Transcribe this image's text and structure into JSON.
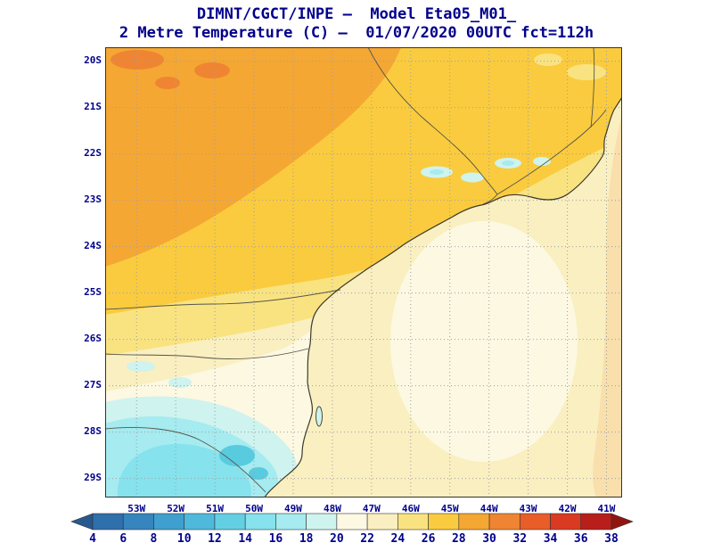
{
  "header": {
    "title_line1": "DIMNT/CGCT/INPE —  Model Eta05_M01_",
    "title_line2": "2 Metre Temperature (C) —  01/07/2020 00UTC fct=112h"
  },
  "map": {
    "lat_labels": [
      "20S",
      "21S",
      "22S",
      "23S",
      "24S",
      "25S",
      "26S",
      "27S",
      "28S",
      "29S"
    ],
    "lon_labels": [
      "53W",
      "52W",
      "51W",
      "50W",
      "49W",
      "48W",
      "47W",
      "46W",
      "45W",
      "44W",
      "43W",
      "42W",
      "41W"
    ],
    "palette": {
      "t12_14": "#58CBDF",
      "t14_16": "#86E2EC",
      "t16_18": "#A5EBF0",
      "t18_20": "#CFF3EE",
      "t20_22": "#FCF8E2",
      "t22_24": "#FAEFC0",
      "t24_26": "#F9E381",
      "t26_28": "#FACB3E",
      "t28_30": "#F5A733",
      "t30_32": "#EF8532",
      "ocean_right": "#F8DFAC",
      "coast_line": "#3A3A2E",
      "border_line": "#55554A",
      "grid_line": "#9AA0A6",
      "label_color": "#00008B"
    }
  },
  "colorbar": {
    "values": [
      "4",
      "6",
      "8",
      "10",
      "12",
      "14",
      "16",
      "18",
      "20",
      "22",
      "24",
      "26",
      "28",
      "30",
      "32",
      "34",
      "36",
      "38"
    ],
    "colors": [
      "#27598F",
      "#2F6FAC",
      "#3685BE",
      "#3F9FCE",
      "#4FB9DC",
      "#63CFE3",
      "#86E2EC",
      "#A5EBF0",
      "#CFF3EE",
      "#FCF8E2",
      "#FAEFC0",
      "#F9E381",
      "#FACB3E",
      "#F5A733",
      "#EF8532",
      "#E85D28",
      "#D93A21",
      "#B81E1A",
      "#8F1511"
    ]
  },
  "chart_data": {
    "type": "heatmap",
    "title": "2 Metre Temperature (C)",
    "institution": "DIMNT/CGCT/INPE",
    "model": "Eta05_M01_",
    "valid_time": "01/07/2020 00UTC",
    "forecast": "fct=112h",
    "x_tick_labels": [
      "53W",
      "52W",
      "51W",
      "50W",
      "49W",
      "48W",
      "47W",
      "46W",
      "45W",
      "44W",
      "43W",
      "42W",
      "41W"
    ],
    "y_tick_labels": [
      "20S",
      "21S",
      "22S",
      "23S",
      "24S",
      "25S",
      "26S",
      "27S",
      "28S",
      "29S"
    ],
    "colorbar_levels_c": [
      4,
      6,
      8,
      10,
      12,
      14,
      16,
      18,
      20,
      22,
      24,
      26,
      28,
      30,
      32,
      34,
      36,
      38
    ],
    "legend_position": "bottom",
    "grid": "dotted",
    "field_regions": [
      {
        "region": "northwest interior, ~20-23S / 50-54W",
        "approx_temp_c": 28
      },
      {
        "region": "north-central band, ~20-24S / 44-50W",
        "approx_temp_c": 26
      },
      {
        "region": "central band near 23-25S (Sao Paulo / Rio de Janeiro coast)",
        "approx_temp_c": 24
      },
      {
        "region": "band near 25-26S (Parana)",
        "approx_temp_c": 22
      },
      {
        "region": "southern highlands, ~27-29S / 49-53W (coolest minimum)",
        "approx_temp_c": 14
      },
      {
        "region": "small cool pockets near 22-23S / 44-46W",
        "approx_temp_c": 18
      },
      {
        "region": "Atlantic ocean east of coastline",
        "approx_temp_c": 21
      },
      {
        "region": "far eastern ocean strip near 41-42W",
        "approx_temp_c": 25
      }
    ]
  }
}
